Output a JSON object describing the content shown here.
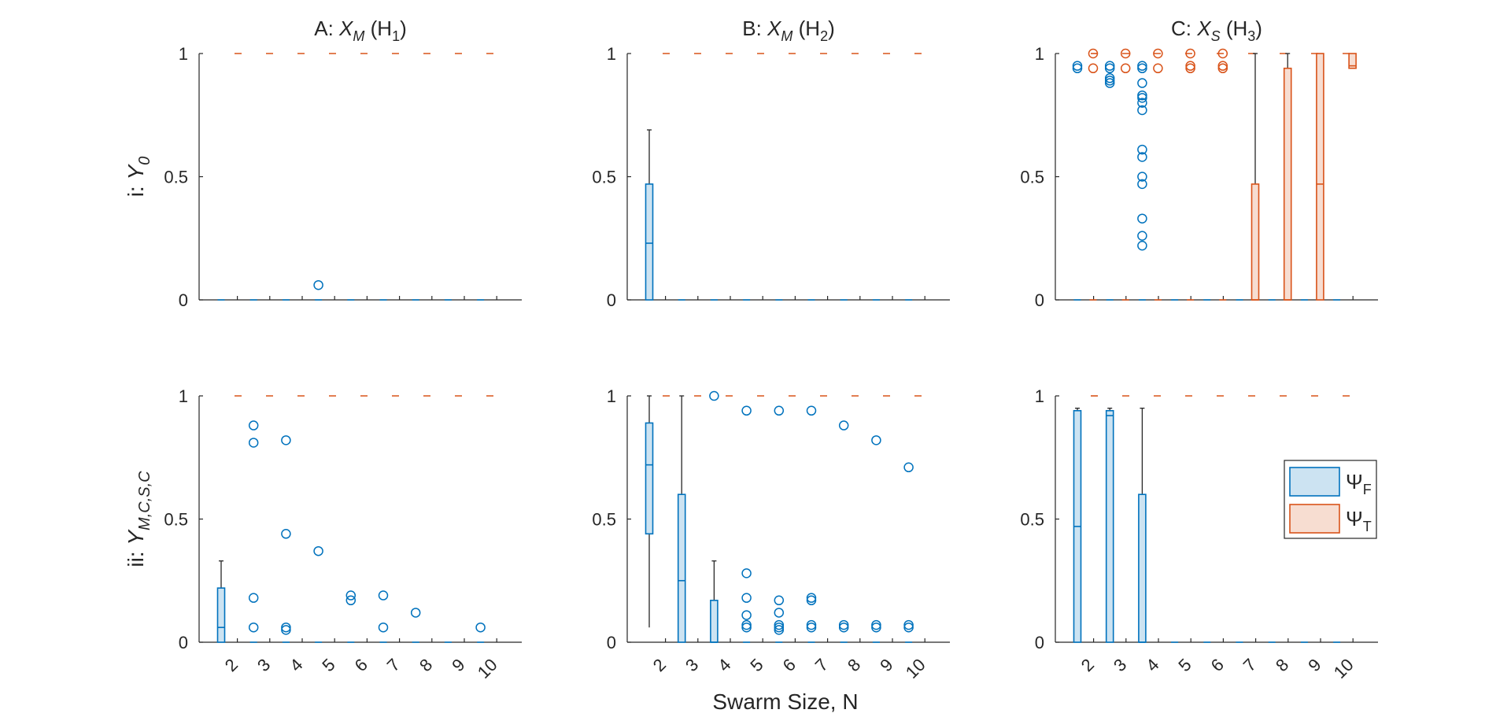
{
  "chart_data": {
    "type": "box",
    "xlabel": "Swarm Size, N",
    "categories": [
      "2",
      "3",
      "4",
      "5",
      "6",
      "7",
      "8",
      "9",
      "10"
    ],
    "ylim": [
      0,
      1
    ],
    "yticks": [
      "0",
      "0.5",
      "1"
    ],
    "reference_line": 1,
    "legend": [
      {
        "key": "F",
        "label": "Ψ",
        "subscript": "F",
        "color": "#0072BD",
        "fill": "#CCE3F2"
      },
      {
        "key": "T",
        "label": "Ψ",
        "subscript": "T",
        "color": "#D95319",
        "fill": "#F7DDD1"
      }
    ],
    "row_labels": [
      {
        "prefix": "i: ",
        "var": "Y",
        "sub": "0"
      },
      {
        "prefix": "ii: ",
        "var": "Y",
        "sub": "M,C,S,C"
      }
    ],
    "panels": [
      {
        "title": {
          "prefix": "A: ",
          "var": "X",
          "sub": "M",
          "hyp": "H",
          "hsub": "1"
        },
        "row": 0,
        "col": 0,
        "F": [
          {
            "q1": 0,
            "med": 0,
            "q3": 0,
            "wlo": 0,
            "whi": 0,
            "out": []
          },
          {
            "q1": 0,
            "med": 0,
            "q3": 0,
            "wlo": 0,
            "whi": 0,
            "out": []
          },
          {
            "q1": 0,
            "med": 0,
            "q3": 0,
            "wlo": 0,
            "whi": 0,
            "out": []
          },
          {
            "q1": 0,
            "med": 0,
            "q3": 0,
            "wlo": 0,
            "whi": 0,
            "out": [
              0.06
            ]
          },
          {
            "q1": 0,
            "med": 0,
            "q3": 0,
            "wlo": 0,
            "whi": 0,
            "out": []
          },
          {
            "q1": 0,
            "med": 0,
            "q3": 0,
            "wlo": 0,
            "whi": 0,
            "out": []
          },
          {
            "q1": 0,
            "med": 0,
            "q3": 0,
            "wlo": 0,
            "whi": 0,
            "out": []
          },
          {
            "q1": 0,
            "med": 0,
            "q3": 0,
            "wlo": 0,
            "whi": 0,
            "out": []
          },
          {
            "q1": 0,
            "med": 0,
            "q3": 0,
            "wlo": 0,
            "whi": 0,
            "out": []
          }
        ],
        "T": []
      },
      {
        "title": {
          "prefix": "B: ",
          "var": "X",
          "sub": "M",
          "hyp": "H",
          "hsub": "2"
        },
        "row": 0,
        "col": 1,
        "F": [
          {
            "q1": 0,
            "med": 0.23,
            "q3": 0.47,
            "wlo": 0,
            "whi": 0.69,
            "out": []
          },
          {
            "q1": 0,
            "med": 0,
            "q3": 0,
            "wlo": 0,
            "whi": 0,
            "out": []
          },
          {
            "q1": 0,
            "med": 0,
            "q3": 0,
            "wlo": 0,
            "whi": 0,
            "out": []
          },
          {
            "q1": 0,
            "med": 0,
            "q3": 0,
            "wlo": 0,
            "whi": 0,
            "out": []
          },
          {
            "q1": 0,
            "med": 0,
            "q3": 0,
            "wlo": 0,
            "whi": 0,
            "out": []
          },
          {
            "q1": 0,
            "med": 0,
            "q3": 0,
            "wlo": 0,
            "whi": 0,
            "out": []
          },
          {
            "q1": 0,
            "med": 0,
            "q3": 0,
            "wlo": 0,
            "whi": 0,
            "out": []
          },
          {
            "q1": 0,
            "med": 0,
            "q3": 0,
            "wlo": 0,
            "whi": 0,
            "out": []
          },
          {
            "q1": 0,
            "med": 0,
            "q3": 0,
            "wlo": 0,
            "whi": 0,
            "out": []
          }
        ],
        "T": []
      },
      {
        "title": {
          "prefix": "C: ",
          "var": "X",
          "sub": "S",
          "hyp": "H",
          "hsub": "3"
        },
        "row": 0,
        "col": 2,
        "F": [
          {
            "q1": 0,
            "med": 0,
            "q3": 0,
            "wlo": 0,
            "whi": 0,
            "out": [
              0.94,
              0.95
            ]
          },
          {
            "q1": 0,
            "med": 0,
            "q3": 0,
            "wlo": 0,
            "whi": 0,
            "out": [
              0.88,
              0.89,
              0.9,
              0.94,
              0.95
            ]
          },
          {
            "q1": 0,
            "med": 0,
            "q3": 0,
            "wlo": 0,
            "whi": 0,
            "out": [
              0.22,
              0.26,
              0.33,
              0.47,
              0.5,
              0.58,
              0.61,
              0.77,
              0.8,
              0.82,
              0.83,
              0.88,
              0.94,
              0.95
            ]
          },
          {
            "q1": 0,
            "med": 0,
            "q3": 0,
            "wlo": 0,
            "whi": 0,
            "out": []
          },
          {
            "q1": 0,
            "med": 0,
            "q3": 0,
            "wlo": 0,
            "whi": 0,
            "out": []
          },
          {
            "q1": 0,
            "med": 0,
            "q3": 0,
            "wlo": 0,
            "whi": 0,
            "out": []
          },
          {
            "q1": 0,
            "med": 0,
            "q3": 0,
            "wlo": 0,
            "whi": 0,
            "out": []
          },
          {
            "q1": 0,
            "med": 0,
            "q3": 0,
            "wlo": 0,
            "whi": 0,
            "out": []
          },
          {
            "q1": 0,
            "med": 0,
            "q3": 0,
            "wlo": 0,
            "whi": 0,
            "out": []
          }
        ],
        "T": [
          {
            "q1": 0,
            "med": 0,
            "q3": 0,
            "wlo": 0,
            "whi": 0,
            "out": [
              0.94,
              1.0
            ]
          },
          {
            "q1": 0,
            "med": 0,
            "q3": 0,
            "wlo": 0,
            "whi": 0,
            "out": [
              0.94,
              1.0
            ]
          },
          {
            "q1": 0,
            "med": 0,
            "q3": 0,
            "wlo": 0,
            "whi": 0,
            "out": [
              0.94,
              1.0
            ]
          },
          {
            "q1": 0,
            "med": 0,
            "q3": 0,
            "wlo": 0,
            "whi": 0,
            "out": [
              0.94,
              0.95,
              1.0
            ]
          },
          {
            "q1": 0,
            "med": 0,
            "q3": 0,
            "wlo": 0,
            "whi": 0,
            "out": [
              0.94,
              0.95,
              1.0
            ]
          },
          {
            "q1": 0,
            "med": 0,
            "q3": 0.47,
            "wlo": 0,
            "whi": 1.0,
            "out": []
          },
          {
            "q1": 0,
            "med": 0,
            "q3": 0.94,
            "wlo": 0,
            "whi": 1.0,
            "out": []
          },
          {
            "q1": 0,
            "med": 0.47,
            "q3": 1.0,
            "wlo": 0,
            "whi": 1.0,
            "out": []
          },
          {
            "q1": 0.94,
            "med": 0.95,
            "q3": 1.0,
            "wlo": 0.94,
            "whi": 1.0,
            "out": []
          }
        ]
      },
      {
        "title": null,
        "row": 1,
        "col": 0,
        "F": [
          {
            "q1": 0,
            "med": 0.06,
            "q3": 0.22,
            "wlo": 0,
            "whi": 0.33,
            "out": []
          },
          {
            "q1": 0,
            "med": 0,
            "q3": 0,
            "wlo": 0,
            "whi": 0,
            "out": [
              0.06,
              0.18,
              0.81,
              0.88
            ]
          },
          {
            "q1": 0,
            "med": 0,
            "q3": 0,
            "wlo": 0,
            "whi": 0,
            "out": [
              0.05,
              0.06,
              0.44,
              0.82
            ]
          },
          {
            "q1": 0,
            "med": 0,
            "q3": 0,
            "wlo": 0,
            "whi": 0,
            "out": [
              0.37
            ]
          },
          {
            "q1": 0,
            "med": 0,
            "q3": 0,
            "wlo": 0,
            "whi": 0,
            "out": [
              0.17,
              0.19
            ]
          },
          {
            "q1": 0,
            "med": 0,
            "q3": 0,
            "wlo": 0,
            "whi": 0,
            "out": [
              0.06,
              0.19
            ]
          },
          {
            "q1": 0,
            "med": 0,
            "q3": 0,
            "wlo": 0,
            "whi": 0,
            "out": [
              0.12
            ]
          },
          {
            "q1": 0,
            "med": 0,
            "q3": 0,
            "wlo": 0,
            "whi": 0,
            "out": []
          },
          {
            "q1": 0,
            "med": 0,
            "q3": 0,
            "wlo": 0,
            "whi": 0,
            "out": [
              0.06
            ]
          }
        ],
        "T": []
      },
      {
        "title": null,
        "row": 1,
        "col": 1,
        "F": [
          {
            "q1": 0.44,
            "med": 0.72,
            "q3": 0.89,
            "wlo": 0.06,
            "whi": 1.0,
            "out": []
          },
          {
            "q1": 0,
            "med": 0.25,
            "q3": 0.6,
            "wlo": 0,
            "whi": 1.0,
            "out": []
          },
          {
            "q1": 0,
            "med": 0,
            "q3": 0.17,
            "wlo": 0,
            "whi": 0.33,
            "out": [
              1.0
            ]
          },
          {
            "q1": 0,
            "med": 0,
            "q3": 0,
            "wlo": 0,
            "whi": 0,
            "out": [
              0.06,
              0.07,
              0.11,
              0.18,
              0.28,
              0.94
            ]
          },
          {
            "q1": 0,
            "med": 0,
            "q3": 0,
            "wlo": 0,
            "whi": 0,
            "out": [
              0.05,
              0.06,
              0.07,
              0.12,
              0.17,
              0.94
            ]
          },
          {
            "q1": 0,
            "med": 0,
            "q3": 0,
            "wlo": 0,
            "whi": 0,
            "out": [
              0.06,
              0.07,
              0.17,
              0.18,
              0.94
            ]
          },
          {
            "q1": 0,
            "med": 0,
            "q3": 0,
            "wlo": 0,
            "whi": 0,
            "out": [
              0.06,
              0.07,
              0.88
            ]
          },
          {
            "q1": 0,
            "med": 0,
            "q3": 0,
            "wlo": 0,
            "whi": 0,
            "out": [
              0.06,
              0.07,
              0.82
            ]
          },
          {
            "q1": 0,
            "med": 0,
            "q3": 0,
            "wlo": 0,
            "whi": 0,
            "out": [
              0.06,
              0.07,
              0.71
            ]
          }
        ],
        "T": []
      },
      {
        "title": null,
        "row": 1,
        "col": 2,
        "F": [
          {
            "q1": 0,
            "med": 0.47,
            "q3": 0.94,
            "wlo": 0,
            "whi": 0.95,
            "out": []
          },
          {
            "q1": 0,
            "med": 0.92,
            "q3": 0.94,
            "wlo": 0,
            "whi": 0.95,
            "out": []
          },
          {
            "q1": 0,
            "med": 0,
            "q3": 0.6,
            "wlo": 0,
            "whi": 0.95,
            "out": []
          },
          {
            "q1": 0,
            "med": 0,
            "q3": 0,
            "wlo": 0,
            "whi": 0,
            "out": []
          },
          {
            "q1": 0,
            "med": 0,
            "q3": 0,
            "wlo": 0,
            "whi": 0,
            "out": []
          },
          {
            "q1": 0,
            "med": 0,
            "q3": 0,
            "wlo": 0,
            "whi": 0,
            "out": []
          },
          {
            "q1": 0,
            "med": 0,
            "q3": 0,
            "wlo": 0,
            "whi": 0,
            "out": []
          },
          {
            "q1": 0,
            "med": 0,
            "q3": 0,
            "wlo": 0,
            "whi": 0,
            "out": []
          },
          {
            "q1": 0,
            "med": 0,
            "q3": 0,
            "wlo": 0,
            "whi": 0,
            "out": []
          }
        ],
        "T": [],
        "legend": true
      }
    ]
  }
}
